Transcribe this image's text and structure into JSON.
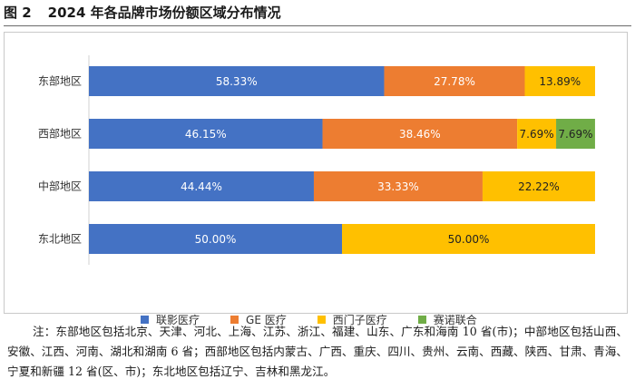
{
  "figure": {
    "number": "图 2",
    "title": "2024 年各品牌市场份额区域分布情况"
  },
  "chart_data": {
    "type": "bar",
    "orientation": "horizontal",
    "stacked": true,
    "normalized_100_percent": true,
    "categories": [
      "东部地区",
      "西部地区",
      "中部地区",
      "东北地区"
    ],
    "series": [
      {
        "name": "联影医疗",
        "color": "#4472C4",
        "values": [
          58.33,
          46.15,
          44.44,
          50.0
        ],
        "labels": [
          "58.33%",
          "46.15%",
          "44.44%",
          "50.00%"
        ]
      },
      {
        "name": "GE 医疗",
        "color": "#ED7D31",
        "values": [
          27.78,
          38.46,
          33.33,
          0
        ],
        "labels": [
          "27.78%",
          "38.46%",
          "33.33%",
          ""
        ]
      },
      {
        "name": "西门子医疗",
        "color": "#FFC000",
        "values": [
          13.89,
          7.69,
          22.22,
          50.0
        ],
        "labels": [
          "13.89%",
          "7.69%",
          "22.22%",
          "50.00%"
        ]
      },
      {
        "name": "赛诺联合",
        "color": "#70AD47",
        "values": [
          0,
          7.69,
          0,
          0
        ],
        "labels": [
          "",
          "7.69%",
          "",
          ""
        ]
      }
    ],
    "xlim": [
      0,
      100
    ],
    "grid": false,
    "legend_position": "bottom"
  },
  "note": "注：东部地区包括北京、天津、河北、上海、江苏、浙江、福建、山东、广东和海南 10 省(市)；中部地区包括山西、安徽、江西、河南、湖北和湖南 6 省；西部地区包括内蒙古、广西、重庆、四川、贵州、云南、西藏、陕西、甘肃、青海、宁夏和新疆 12 省(区、市)；东北地区包括辽宁、吉林和黑龙江。"
}
